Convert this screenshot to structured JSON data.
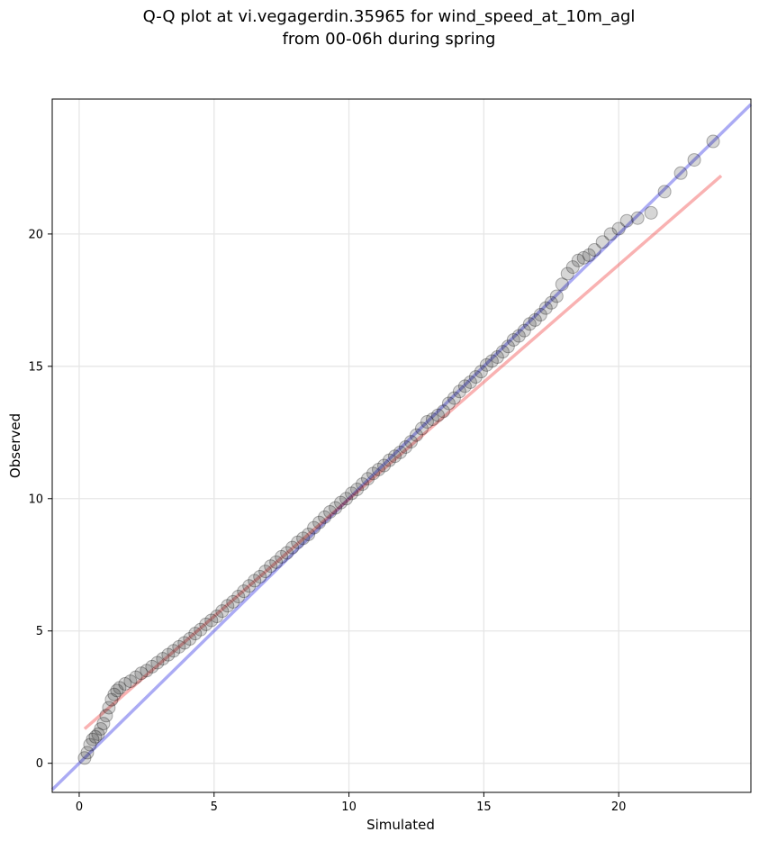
{
  "chart_data": {
    "type": "scatter",
    "title": "Q-Q plot at vi.vegagerdin.35965 for wind_speed_at_10m_agl",
    "subtitle": "from 00-06h during spring",
    "xlabel": "Simulated",
    "ylabel": "Observed",
    "xlim": [
      -1.0,
      24.9
    ],
    "ylim": [
      -1.1,
      25.1
    ],
    "xticks": [
      0,
      5,
      10,
      15,
      20
    ],
    "yticks": [
      0,
      5,
      10,
      15,
      20
    ],
    "grid": true,
    "legend": "none",
    "colors": {
      "points": "#000000",
      "identity_line": "#0000dd",
      "fit_line": "#ee2222"
    },
    "identity_line": {
      "x": [
        -1.0,
        24.9
      ],
      "y": [
        -1.0,
        24.9
      ]
    },
    "fit_line": {
      "x": [
        0.2,
        23.8
      ],
      "y": [
        1.3,
        22.2
      ]
    },
    "points": {
      "x": [
        0.2,
        0.3,
        0.4,
        0.5,
        0.6,
        0.7,
        0.8,
        0.9,
        1.0,
        1.1,
        1.2,
        1.3,
        1.4,
        1.5,
        1.7,
        1.9,
        2.1,
        2.3,
        2.5,
        2.7,
        2.9,
        3.1,
        3.3,
        3.5,
        3.7,
        3.9,
        4.1,
        4.3,
        4.5,
        4.7,
        4.9,
        5.1,
        5.3,
        5.5,
        5.7,
        5.9,
        6.1,
        6.3,
        6.5,
        6.7,
        6.9,
        7.1,
        7.3,
        7.5,
        7.7,
        7.9,
        8.1,
        8.3,
        8.5,
        8.7,
        8.9,
        9.1,
        9.3,
        9.5,
        9.7,
        9.9,
        10.1,
        10.3,
        10.5,
        10.7,
        10.9,
        11.1,
        11.3,
        11.5,
        11.7,
        11.9,
        12.1,
        12.3,
        12.5,
        12.7,
        12.9,
        13.1,
        13.3,
        13.5,
        13.7,
        13.9,
        14.1,
        14.3,
        14.5,
        14.7,
        14.9,
        15.1,
        15.3,
        15.5,
        15.7,
        15.9,
        16.1,
        16.3,
        16.5,
        16.7,
        16.9,
        17.1,
        17.3,
        17.5,
        17.7,
        17.9,
        18.1,
        18.3,
        18.5,
        18.7,
        18.9,
        19.1,
        19.4,
        19.7,
        20.0,
        20.3,
        20.7,
        21.2,
        21.7,
        22.3,
        22.8,
        23.5
      ],
      "y": [
        0.2,
        0.4,
        0.7,
        0.9,
        1.0,
        1.1,
        1.3,
        1.5,
        1.8,
        2.1,
        2.4,
        2.6,
        2.75,
        2.85,
        3.0,
        3.1,
        3.25,
        3.4,
        3.5,
        3.65,
        3.8,
        3.95,
        4.1,
        4.25,
        4.4,
        4.55,
        4.7,
        4.9,
        5.05,
        5.25,
        5.4,
        5.55,
        5.75,
        5.95,
        6.1,
        6.3,
        6.5,
        6.7,
        6.9,
        7.05,
        7.25,
        7.45,
        7.6,
        7.8,
        7.95,
        8.15,
        8.35,
        8.5,
        8.65,
        8.9,
        9.1,
        9.3,
        9.5,
        9.65,
        9.85,
        10.0,
        10.2,
        10.35,
        10.55,
        10.75,
        10.95,
        11.1,
        11.25,
        11.45,
        11.6,
        11.75,
        11.95,
        12.15,
        12.4,
        12.65,
        12.9,
        13.0,
        13.15,
        13.3,
        13.6,
        13.8,
        14.05,
        14.25,
        14.4,
        14.6,
        14.8,
        15.05,
        15.2,
        15.35,
        15.55,
        15.75,
        16.0,
        16.15,
        16.35,
        16.6,
        16.75,
        16.95,
        17.2,
        17.4,
        17.65,
        18.1,
        18.5,
        18.75,
        19.0,
        19.1,
        19.2,
        19.4,
        19.7,
        20.0,
        20.2,
        20.5,
        20.6,
        20.8,
        21.6,
        22.3,
        22.8,
        23.5
      ]
    }
  }
}
